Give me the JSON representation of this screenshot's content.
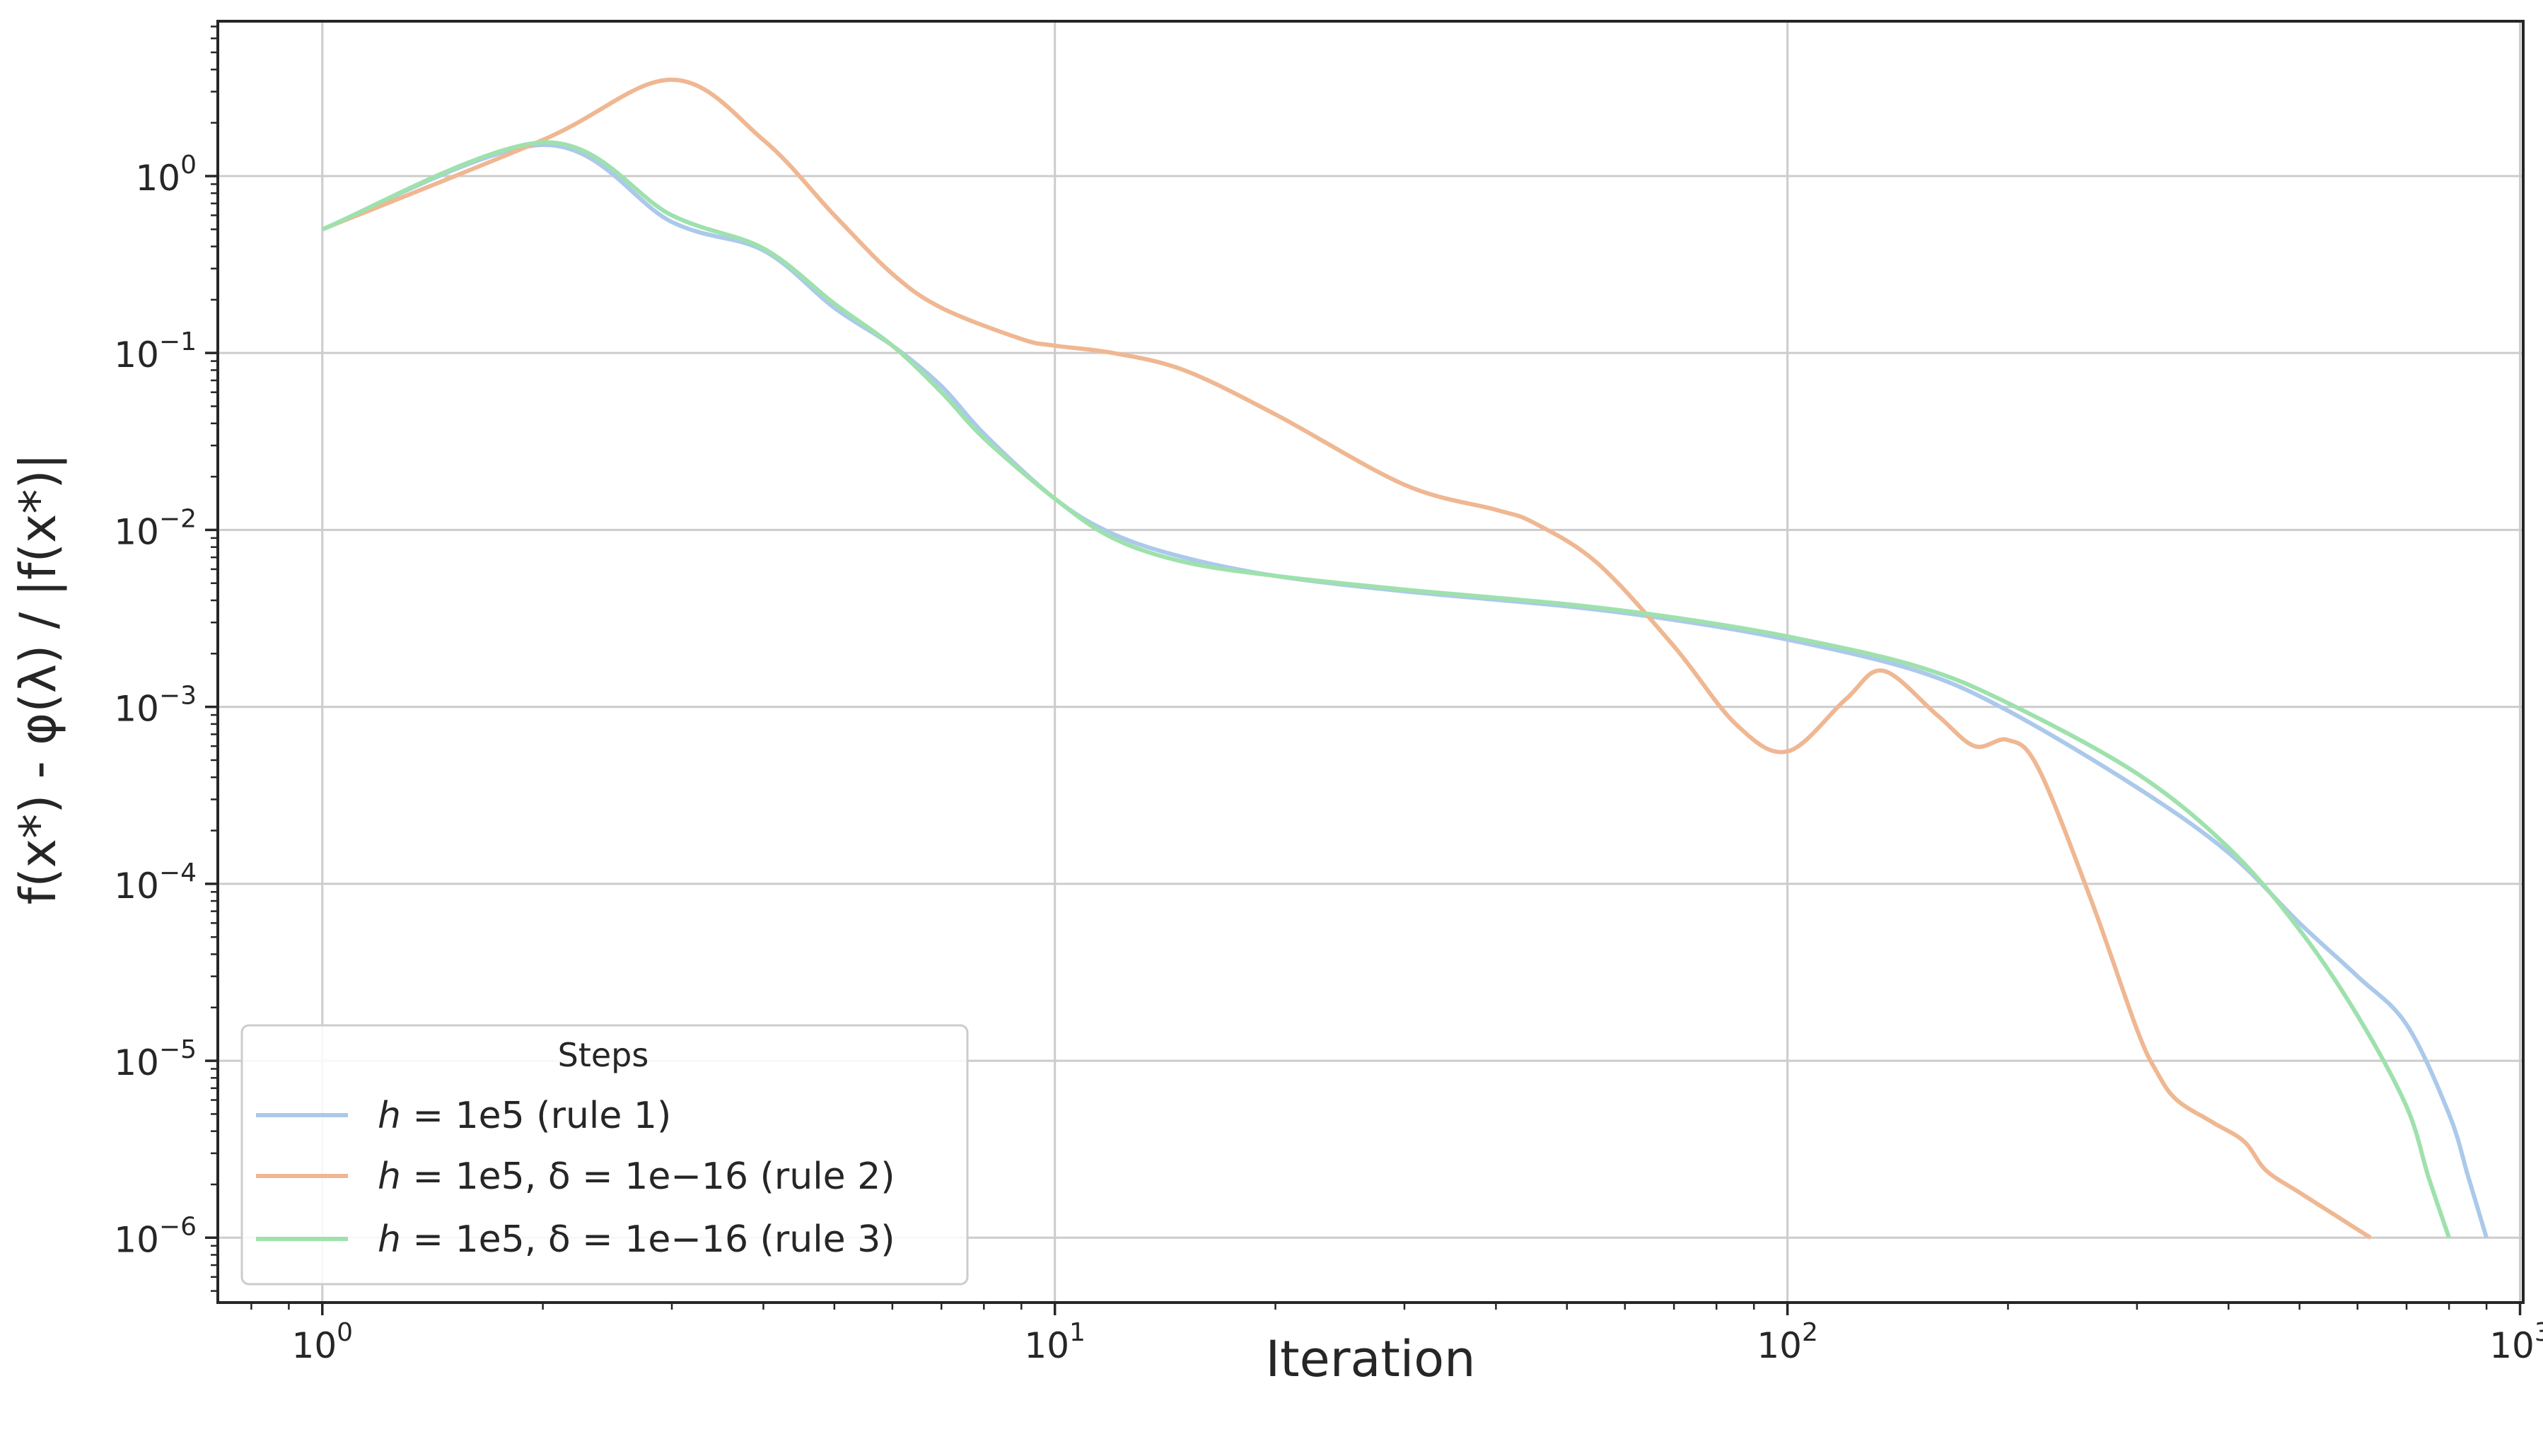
{
  "chart_data": {
    "type": "line",
    "xlabel": "Iteration",
    "ylabel": "f(x*) - φ(λ) / |f(x*)|",
    "xscale": "log",
    "yscale": "log",
    "xlim": [
      0.72,
      1010
    ],
    "ylim": [
      4.3e-07,
      7.5
    ],
    "grid": true,
    "x_ticks": [
      {
        "value": 1,
        "base": "10",
        "exp": "0"
      },
      {
        "value": 10,
        "base": "10",
        "exp": "1"
      },
      {
        "value": 100,
        "base": "10",
        "exp": "2"
      },
      {
        "value": 1000,
        "base": "10",
        "exp": "3"
      }
    ],
    "y_ticks": [
      {
        "value": 1,
        "base": "10",
        "exp": "0"
      },
      {
        "value": 0.1,
        "base": "10",
        "exp": "−1"
      },
      {
        "value": 0.01,
        "base": "10",
        "exp": "−2"
      },
      {
        "value": 0.001,
        "base": "10",
        "exp": "−3"
      },
      {
        "value": 0.0001,
        "base": "10",
        "exp": "−4"
      },
      {
        "value": 1e-05,
        "base": "10",
        "exp": "−5"
      },
      {
        "value": 1e-06,
        "base": "10",
        "exp": "−6"
      }
    ],
    "legend": {
      "title": "Steps",
      "position": "lower-left"
    },
    "series": [
      {
        "name": "h = 1e5 (rule 1)",
        "label_parts": {
          "var": "h",
          "rest": " = 1e5 (rule 1)"
        },
        "color": "#abc9ea",
        "x": [
          1,
          2,
          3,
          4,
          5,
          6,
          7,
          8,
          10,
          12,
          15,
          20,
          30,
          50,
          70,
          100,
          150,
          200,
          300,
          400,
          500,
          600,
          700,
          800,
          850,
          900
        ],
        "y": [
          0.5,
          1.5,
          0.55,
          0.38,
          0.18,
          0.11,
          0.065,
          0.035,
          0.015,
          0.0095,
          0.007,
          0.0055,
          0.0045,
          0.0037,
          0.0031,
          0.0024,
          0.0016,
          0.00095,
          0.00035,
          0.00015,
          6e-05,
          3e-05,
          1.6e-05,
          5e-06,
          2.2e-06,
          1e-06
        ]
      },
      {
        "name": "h = 1e5, δ = 1e−16 (rule 2)",
        "label_parts": {
          "var": "h",
          "rest": " = 1e5, δ = 1e−16 (rule 2)"
        },
        "color": "#efb792",
        "x": [
          1,
          2,
          3,
          4,
          5,
          6,
          7,
          9,
          10,
          12,
          15,
          20,
          30,
          40,
          45,
          55,
          70,
          85,
          100,
          120,
          135,
          160,
          180,
          200,
          220,
          260,
          300,
          320,
          340,
          380,
          420,
          450,
          500,
          550,
          625
        ],
        "y": [
          0.5,
          1.6,
          3.5,
          1.6,
          0.6,
          0.28,
          0.18,
          0.12,
          0.11,
          0.1,
          0.08,
          0.045,
          0.018,
          0.013,
          0.011,
          0.0065,
          0.0022,
          0.0008,
          0.00056,
          0.0011,
          0.0016,
          0.0009,
          0.0006,
          0.00065,
          0.00045,
          8e-05,
          1.5e-05,
          8.5e-06,
          6e-06,
          4.5e-06,
          3.5e-06,
          2.4e-06,
          1.8e-06,
          1.4e-06,
          1e-06
        ]
      },
      {
        "name": "h = 1e5, δ = 1e−16 (rule 3)",
        "label_parts": {
          "var": "h",
          "rest": " = 1e5, δ = 1e−16 (rule 3)"
        },
        "color": "#9ee1ad",
        "x": [
          1,
          2,
          3,
          4,
          5,
          6,
          7,
          8,
          10,
          12,
          15,
          20,
          30,
          50,
          70,
          100,
          150,
          200,
          300,
          400,
          500,
          600,
          700,
          750,
          800
        ],
        "y": [
          0.5,
          1.55,
          0.6,
          0.39,
          0.19,
          0.11,
          0.06,
          0.033,
          0.015,
          0.009,
          0.0066,
          0.0055,
          0.0046,
          0.0038,
          0.0032,
          0.0025,
          0.0017,
          0.00105,
          0.00042,
          0.00016,
          5.5e-05,
          1.8e-05,
          5.5e-06,
          2.2e-06,
          1e-06
        ]
      }
    ]
  }
}
